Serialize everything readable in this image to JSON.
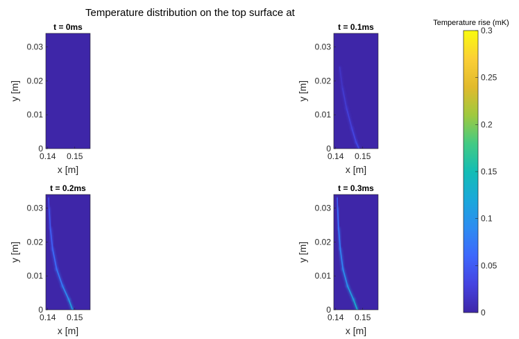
{
  "title": "Temperature distribution on the top surface at",
  "colorbar": {
    "label": "Temperature rise (mK)",
    "min": 0,
    "max": 0.3,
    "ticks": [
      "0",
      "0.05",
      "0.1",
      "0.15",
      "0.2",
      "0.25",
      "0.3"
    ],
    "tick_values": [
      0,
      0.05,
      0.1,
      0.15,
      0.2,
      0.25,
      0.3
    ],
    "colormap": "parula",
    "color_low": "#3e26a8",
    "color_high": "#f9fb0e"
  },
  "chart_data": [
    {
      "type": "heatmap",
      "title": "t = 0ms",
      "xlabel": "x [m]",
      "ylabel": "y [m]",
      "xlim": [
        0.1393,
        0.1557
      ],
      "ylim": [
        0,
        0.034
      ],
      "xticks": [
        0.14,
        0.15
      ],
      "xtick_labels": [
        "0.14",
        "0.15"
      ],
      "yticks": [
        0,
        0.01,
        0.02,
        0.03
      ],
      "ytick_labels": [
        "0",
        "0.01",
        "0.02",
        "0.03"
      ],
      "background_value": 0,
      "front": []
    },
    {
      "type": "heatmap",
      "title": "t = 0.1ms",
      "xlabel": "x [m]",
      "ylabel": "y [m]",
      "xlim": [
        0.1393,
        0.1557
      ],
      "ylim": [
        0,
        0.034
      ],
      "xticks": [
        0.14,
        0.15
      ],
      "xtick_labels": [
        "0.14",
        "0.15"
      ],
      "yticks": [
        0,
        0.01,
        0.02,
        0.03
      ],
      "ytick_labels": [
        "0",
        "0.01",
        "0.02",
        "0.03"
      ],
      "background_value": 0,
      "front": [
        {
          "x": 0.1486,
          "y": 0.0,
          "value": 0.04
        },
        {
          "x": 0.1475,
          "y": 0.002,
          "value": 0.035
        },
        {
          "x": 0.146,
          "y": 0.006,
          "value": 0.03
        },
        {
          "x": 0.144,
          "y": 0.012,
          "value": 0.025
        },
        {
          "x": 0.1425,
          "y": 0.018,
          "value": 0.02
        },
        {
          "x": 0.1415,
          "y": 0.024,
          "value": 0.012
        }
      ]
    },
    {
      "type": "heatmap",
      "title": "t = 0.2ms",
      "xlabel": "x [m]",
      "ylabel": "y [m]",
      "xlim": [
        0.1393,
        0.1557
      ],
      "ylim": [
        0,
        0.034
      ],
      "xticks": [
        0.14,
        0.15
      ],
      "xtick_labels": [
        "0.14",
        "0.15"
      ],
      "yticks": [
        0,
        0.01,
        0.02,
        0.03
      ],
      "ytick_labels": [
        "0",
        "0.01",
        "0.02",
        "0.03"
      ],
      "background_value": 0,
      "front": [
        {
          "x": 0.1492,
          "y": 0.0,
          "value": 0.12
        },
        {
          "x": 0.1478,
          "y": 0.003,
          "value": 0.1
        },
        {
          "x": 0.1455,
          "y": 0.007,
          "value": 0.08
        },
        {
          "x": 0.1433,
          "y": 0.012,
          "value": 0.07
        },
        {
          "x": 0.1418,
          "y": 0.018,
          "value": 0.06
        },
        {
          "x": 0.141,
          "y": 0.024,
          "value": 0.05
        },
        {
          "x": 0.1405,
          "y": 0.03,
          "value": 0.04
        },
        {
          "x": 0.1403,
          "y": 0.033,
          "value": 0.03
        }
      ]
    },
    {
      "type": "heatmap",
      "title": "t = 0.3ms",
      "xlabel": "x [m]",
      "ylabel": "y [m]",
      "xlim": [
        0.1393,
        0.1557
      ],
      "ylim": [
        0,
        0.034
      ],
      "xticks": [
        0.14,
        0.15
      ],
      "xtick_labels": [
        "0.14",
        "0.15"
      ],
      "yticks": [
        0,
        0.01,
        0.02,
        0.03
      ],
      "ytick_labels": [
        "0",
        "0.01",
        "0.02",
        "0.03"
      ],
      "background_value": 0,
      "front": [
        {
          "x": 0.148,
          "y": 0.0,
          "value": 0.14
        },
        {
          "x": 0.1466,
          "y": 0.003,
          "value": 0.12
        },
        {
          "x": 0.1444,
          "y": 0.007,
          "value": 0.1
        },
        {
          "x": 0.1427,
          "y": 0.012,
          "value": 0.09
        },
        {
          "x": 0.1417,
          "y": 0.018,
          "value": 0.08
        },
        {
          "x": 0.1411,
          "y": 0.024,
          "value": 0.07
        },
        {
          "x": 0.1407,
          "y": 0.03,
          "value": 0.06
        },
        {
          "x": 0.1406,
          "y": 0.033,
          "value": 0.05
        }
      ]
    }
  ]
}
